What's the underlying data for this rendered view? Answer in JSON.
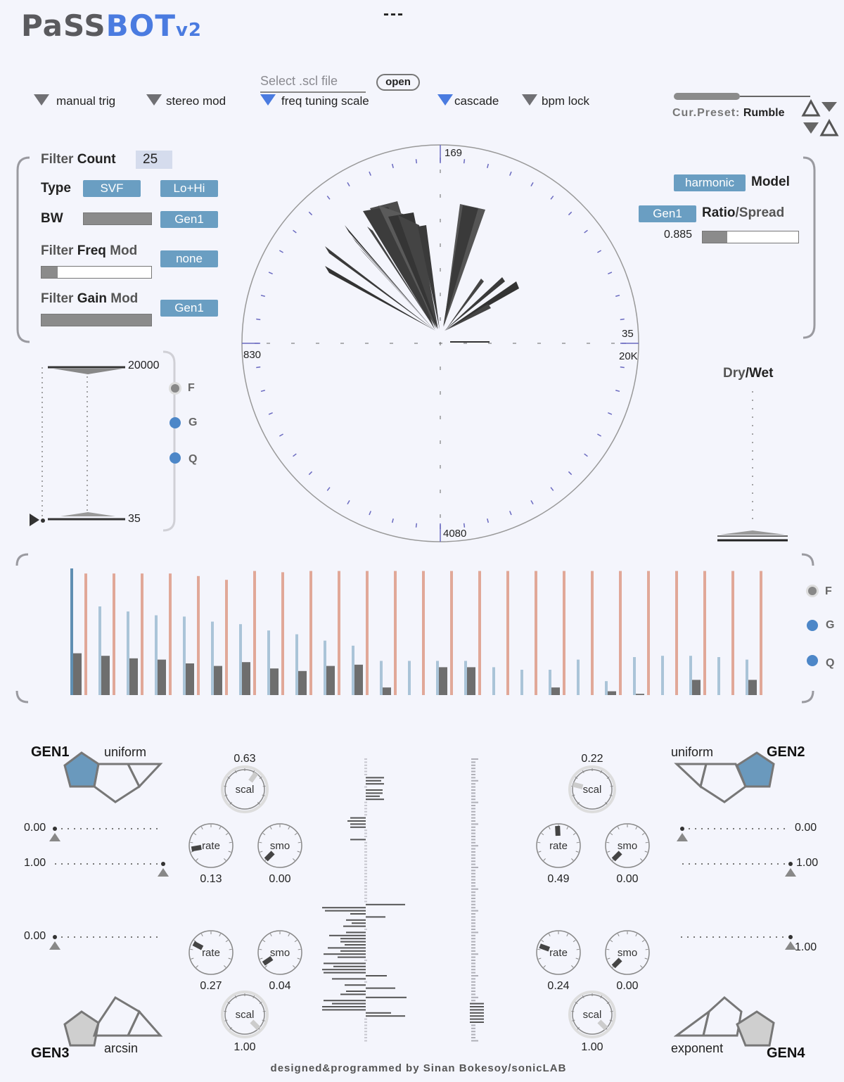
{
  "header": {
    "logo_part1": "PaSS",
    "logo_part2": "BOT",
    "logo_part3": "v2",
    "status": "---"
  },
  "toggles": {
    "manual_trig": "manual trig",
    "stereo_mod": "stereo mod",
    "freq_tuning_scale": "freq tuning scale",
    "cascade": "cascade",
    "bpm_lock": "bpm lock"
  },
  "scl": {
    "placeholder": "Select .scl file",
    "open_label": "open"
  },
  "preset": {
    "label": "Cur.Preset:",
    "name": "Rumble"
  },
  "filter": {
    "count_label_1": "Filter",
    "count_label_2": "Count",
    "count_value": "25",
    "type_label": "Type",
    "type_value": "SVF",
    "type_mode": "Lo+Hi",
    "bw_label": "BW",
    "bw_source": "Gen1",
    "bw_level": 1.0,
    "freq_mod_label_1": "Filter",
    "freq_mod_label_2": "Freq",
    "freq_mod_label_3": "Mod",
    "freq_mod_source": "none",
    "freq_mod_level": 0.15,
    "gain_mod_label_1": "Filter",
    "gain_mod_label_2": "Gain",
    "gain_mod_label_3": "Mod",
    "gain_mod_source": "Gen1",
    "gain_mod_level": 1.0
  },
  "model": {
    "type": "harmonic",
    "label": "Model",
    "ratio_source": "Gen1",
    "ratio_label_1": "Ratio",
    "ratio_label_2": "/Spread",
    "ratio_value": "0.885",
    "ratio_level": 0.26
  },
  "freq_range": {
    "max": "20000",
    "min": "35",
    "radio_f": "F",
    "radio_g": "G",
    "radio_q": "Q"
  },
  "polar": {
    "label_top": "169",
    "label_left": "830",
    "label_right_top": "35",
    "label_right": "20K",
    "label_bottom": "4080"
  },
  "drywet": {
    "label_1": "Dry",
    "label_2": "/Wet",
    "level": 0.0
  },
  "bars": {
    "radio_f": "F",
    "radio_g": "G",
    "radio_q": "Q",
    "blue": [
      1.0,
      0.7,
      0.66,
      0.63,
      0.62,
      0.58,
      0.56,
      0.51,
      0.48,
      0.43,
      0.39,
      0.27,
      0.27,
      0.27,
      0.27,
      0.22,
      0.2,
      0.2,
      0.28,
      0.11,
      0.3,
      0.31,
      0.31,
      0.3,
      0.28
    ],
    "red": [
      0.96,
      0.96,
      0.96,
      0.96,
      0.94,
      0.91,
      0.98,
      0.97,
      0.98,
      0.98,
      0.98,
      0.98,
      0.98,
      0.98,
      0.98,
      0.98,
      0.98,
      0.98,
      0.98,
      0.98,
      0.98,
      0.98,
      0.98,
      0.98,
      0.98
    ],
    "grey": [
      0.33,
      0.31,
      0.29,
      0.28,
      0.25,
      0.23,
      0.26,
      0.21,
      0.19,
      0.23,
      0.24,
      0.06,
      0.0,
      0.22,
      0.22,
      0.0,
      0.0,
      0.06,
      0.0,
      0.03,
      0.01,
      0.0,
      0.12,
      0.0,
      0.12
    ]
  },
  "gen1": {
    "name": "GEN1",
    "dist": "uniform",
    "min": "0.00",
    "max": "1.00",
    "scal": "0.63",
    "rate": "0.13",
    "smo": "0.00",
    "scal_label": "scal",
    "rate_label": "rate",
    "smo_label": "smo"
  },
  "gen2": {
    "name": "GEN2",
    "dist": "uniform",
    "min": "0.00",
    "max": "1.00",
    "scal": "0.22",
    "rate": "0.49",
    "smo": "0.00",
    "scal_label": "scal",
    "rate_label": "rate",
    "smo_label": "smo"
  },
  "gen3": {
    "name": "GEN3",
    "dist": "arcsin",
    "min": "0.00",
    "scal": "1.00",
    "rate": "0.27",
    "smo": "0.04",
    "scal_label": "scal",
    "rate_label": "rate",
    "smo_label": "smo"
  },
  "gen4": {
    "name": "GEN4",
    "dist": "exponent",
    "max": "1.00",
    "scal": "1.00",
    "rate": "0.24",
    "smo": "0.00",
    "scal_label": "scal",
    "rate_label": "rate",
    "smo_label": "smo"
  },
  "footer": {
    "credit": "designed&programmed by Sinan Bokesoy/sonicLAB"
  },
  "colors": {
    "accent_blue": "#4a7be0",
    "button_blue": "#6a9ec2",
    "bar_blue": "#aac4d8",
    "bar_red": "#e1a898",
    "bar_grey": "#6e6e6e"
  }
}
